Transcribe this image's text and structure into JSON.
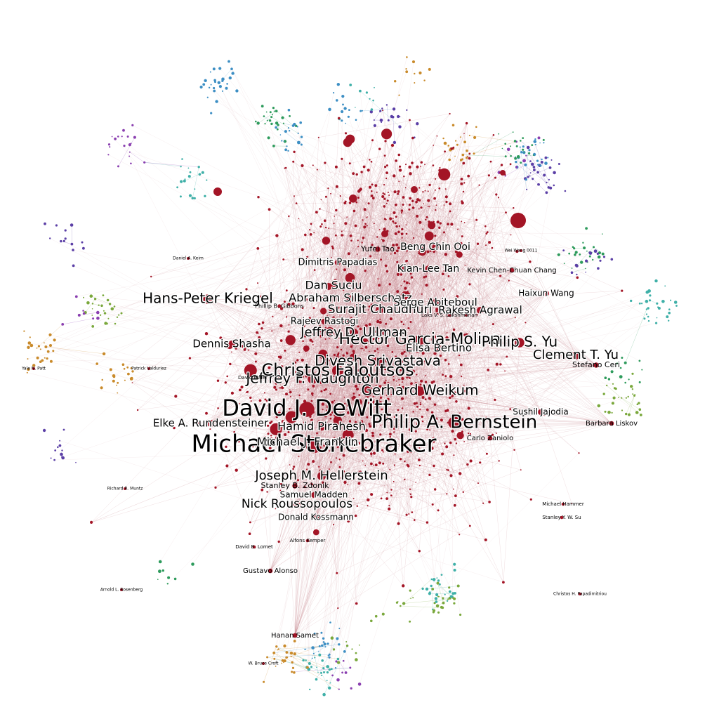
{
  "palette": {
    "primary_cluster": "#a31526",
    "edge_primary": "#c98a93",
    "peripheral": [
      "#2e9b5c",
      "#5b3fa6",
      "#3d8fc4",
      "#c98a2a",
      "#7aa83c",
      "#3fb0a8",
      "#8a3fb0"
    ]
  },
  "nodes": [
    {
      "id": "michael-stonebraker",
      "label": "Michael Stonebraker",
      "emphasis": 5
    },
    {
      "id": "david-j-dewitt",
      "label": "David J. DeWitt",
      "emphasis": 5
    },
    {
      "id": "philip-a-bernstein",
      "label": "Philip A. Bernstein",
      "emphasis": 4
    },
    {
      "id": "gerhard-weikum",
      "label": "Gerhard Weikum",
      "emphasis": 3
    },
    {
      "id": "divesh-srivastava",
      "label": "Divesh Srivastava",
      "emphasis": 3
    },
    {
      "id": "jeffrey-f-naughton",
      "label": "Jeffrey F. Naughton",
      "emphasis": 3
    },
    {
      "id": "christos-faloutsos",
      "label": "Christos Faloutsos",
      "emphasis": 4
    },
    {
      "id": "hector-garcia-molina",
      "label": "Hector Garcia-Molina",
      "emphasis": 3
    },
    {
      "id": "philip-s-yu",
      "label": "Philip S. Yu",
      "emphasis": 3
    },
    {
      "id": "hans-peter-kriegel",
      "label": "Hans-Peter Kriegel",
      "emphasis": 3
    },
    {
      "id": "clement-t-yu",
      "label": "Clement T. Yu",
      "emphasis": 2
    },
    {
      "id": "joseph-m-hellerstein",
      "label": "Joseph M. Hellerstein",
      "emphasis": 2
    },
    {
      "id": "nick-roussopoulos",
      "label": "Nick Roussopoulos",
      "emphasis": 2
    },
    {
      "id": "michael-j-franklin",
      "label": "Michael J. Franklin",
      "emphasis": 2
    },
    {
      "id": "hamid-pirahesh",
      "label": "Hamid Pirahesh",
      "emphasis": 2
    },
    {
      "id": "elke-a-rundensteiner",
      "label": "Elke A. Rundensteiner",
      "emphasis": 2
    },
    {
      "id": "jeffrey-d-ullman",
      "label": "Jeffrey D. Ullman",
      "emphasis": 2
    },
    {
      "id": "surajit-chaudhuri",
      "label": "Surajit Chaudhuri",
      "emphasis": 2
    },
    {
      "id": "abraham-silberschatz",
      "label": "Abraham Silberschatz",
      "emphasis": 2
    },
    {
      "id": "dennis-shasha",
      "label": "Dennis Shasha",
      "emphasis": 2
    },
    {
      "id": "dan-suciu",
      "label": "Dan Suciu",
      "emphasis": 2
    },
    {
      "id": "serge-abiteboul",
      "label": "Serge Abiteboul",
      "emphasis": 2
    },
    {
      "id": "rakesh-agrawal",
      "label": "Rakesh Agrawal",
      "emphasis": 2
    },
    {
      "id": "elisa-bertino",
      "label": "Elisa Bertino",
      "emphasis": 2
    },
    {
      "id": "beng-chin-ooi",
      "label": "Beng Chin Ooi",
      "emphasis": 2
    },
    {
      "id": "kian-lee-tan",
      "label": "Kian-Lee Tan",
      "emphasis": 2
    },
    {
      "id": "dimitris-papadias",
      "label": "Dimitris Papadias",
      "emphasis": 2
    },
    {
      "id": "rajeev-rastogi",
      "label": "Rajeev Rastogi",
      "emphasis": 2
    },
    {
      "id": "sushil-jajodia",
      "label": "Sushil Jajodia",
      "emphasis": 1
    },
    {
      "id": "carlo-zaniolo",
      "label": "Carlo Zaniolo",
      "emphasis": 1
    },
    {
      "id": "samuel-madden",
      "label": "Samuel Madden",
      "emphasis": 1
    },
    {
      "id": "donald-kossmann",
      "label": "Donald Kossmann",
      "emphasis": 1
    },
    {
      "id": "stanley-b-zdonik",
      "label": "Stanley B. Zdonik",
      "emphasis": 1
    },
    {
      "id": "haixun-wang",
      "label": "Haixun Wang",
      "emphasis": 1
    },
    {
      "id": "kevin-chen-chuan-chang",
      "label": "Kevin Chen-Chuan Chang",
      "emphasis": 1
    },
    {
      "id": "yufei-tao",
      "label": "Yufei Tao",
      "emphasis": 1
    },
    {
      "id": "stefano-ceri",
      "label": "Stefano Ceri",
      "emphasis": 1
    },
    {
      "id": "barbara-liskov",
      "label": "Barbara Liskov",
      "emphasis": 1
    },
    {
      "id": "hanan-samet",
      "label": "Hanan Samet",
      "emphasis": 1
    },
    {
      "id": "gustavo-alonso",
      "label": "Gustavo Alonso",
      "emphasis": 1
    },
    {
      "id": "stanley-y-w-su",
      "label": "Stanley Y. W. Su",
      "emphasis": 0
    },
    {
      "id": "alfons-kemper",
      "label": "Alfons Kemper",
      "emphasis": 0
    },
    {
      "id": "david-maier",
      "label": "David Maier",
      "emphasis": 0
    },
    {
      "id": "david-b-lomet",
      "label": "David B. Lomet",
      "emphasis": 0
    },
    {
      "id": "laks-v-s-lakshmanan",
      "label": "Laks V. S. Lakshmanan",
      "emphasis": 0
    },
    {
      "id": "phillip-b-gibbons",
      "label": "Phillip B. Gibbons",
      "emphasis": 0
    },
    {
      "id": "richard-r-muntz",
      "label": "Richard R. Muntz",
      "emphasis": 0
    },
    {
      "id": "daniel-a-keim",
      "label": "Daniel A. Keim",
      "emphasis": 0
    },
    {
      "id": "arnold-l-rosenberg",
      "label": "Arnold L. Rosenberg",
      "emphasis": 0
    },
    {
      "id": "christos-h-papadimitriou",
      "label": "Christos H. Papadimitriou",
      "emphasis": 0
    },
    {
      "id": "yale-n-patt",
      "label": "Yale N. Patt",
      "emphasis": 0
    },
    {
      "id": "michael-hammer",
      "label": "Michael Hammer",
      "emphasis": 0
    },
    {
      "id": "patrick-valduriez",
      "label": "Patrick Valduriez",
      "emphasis": 0
    },
    {
      "id": "w-bruce-croft",
      "label": "W. Bruce Croft",
      "emphasis": 0
    },
    {
      "id": "wei-wang",
      "label": "Wei Wang 0011",
      "emphasis": 0
    },
    {
      "id": "david-j-dewitt-b",
      "label": "David J. DeWitt",
      "emphasis": -1
    }
  ]
}
